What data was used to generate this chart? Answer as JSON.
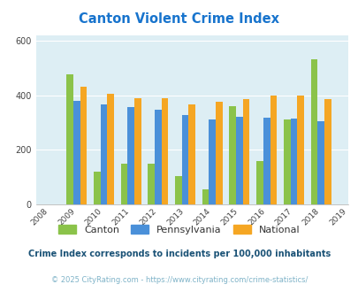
{
  "title": "Canton Violent Crime Index",
  "title_color": "#1874cd",
  "years": [
    2009,
    2010,
    2011,
    2012,
    2013,
    2014,
    2015,
    2016,
    2017,
    2018
  ],
  "canton": [
    475,
    120,
    150,
    150,
    105,
    55,
    360,
    160,
    310,
    530
  ],
  "pennsylvania": [
    380,
    365,
    355,
    348,
    328,
    312,
    320,
    318,
    314,
    305
  ],
  "national": [
    430,
    405,
    390,
    390,
    365,
    375,
    385,
    400,
    398,
    385
  ],
  "canton_color": "#8bc34a",
  "pennsylvania_color": "#4a90d9",
  "national_color": "#f5a623",
  "bg_color": "#ddeef4",
  "ylim": [
    0,
    620
  ],
  "yticks": [
    0,
    200,
    400,
    600
  ],
  "xlabel_years": [
    2008,
    2009,
    2010,
    2011,
    2012,
    2013,
    2014,
    2015,
    2016,
    2017,
    2018,
    2019
  ],
  "footnote1": "Crime Index corresponds to incidents per 100,000 inhabitants",
  "footnote2": "© 2025 CityRating.com - https://www.cityrating.com/crime-statistics/",
  "footnote1_color": "#1a5276",
  "footnote2_color": "#7fb3c8",
  "legend_labels": [
    "Canton",
    "Pennsylvania",
    "National"
  ],
  "bar_width": 0.25
}
